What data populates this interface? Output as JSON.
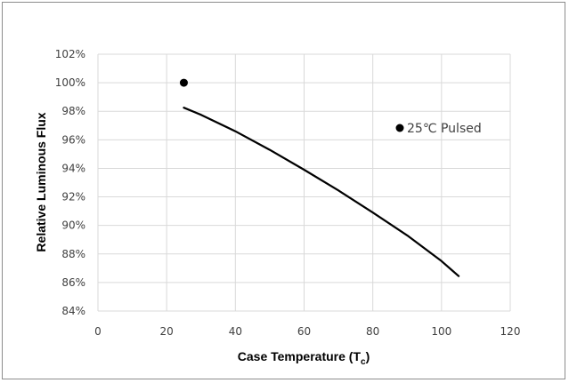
{
  "chart_data": {
    "type": "line",
    "title": "",
    "xlabel": "Case Temperature (T",
    "xlabel_subscript": "c",
    "xlabel_suffix": ")",
    "ylabel": "Relative Luminous Flux",
    "xlim": [
      0,
      120
    ],
    "ylim": [
      84,
      102
    ],
    "x_ticks": [
      0,
      20,
      40,
      60,
      80,
      100,
      120
    ],
    "x_tick_labels": [
      "0",
      "20",
      "40",
      "60",
      "80",
      "100",
      "120"
    ],
    "y_ticks": [
      84,
      86,
      88,
      90,
      92,
      94,
      96,
      98,
      100,
      102
    ],
    "y_tick_labels": [
      "84%",
      "86%",
      "88%",
      "90%",
      "92%",
      "94%",
      "96%",
      "98%",
      "100%",
      "102%"
    ],
    "grid": true,
    "legend_position": "right",
    "series": [
      {
        "type": "line",
        "x": [
          25,
          30,
          40,
          50,
          60,
          70,
          80,
          90,
          100,
          105
        ],
        "y": [
          98.25,
          97.75,
          96.6,
          95.3,
          93.9,
          92.45,
          90.9,
          89.3,
          87.5,
          86.45
        ],
        "color": "#000000"
      },
      {
        "name": "25℃ Pulsed",
        "type": "scatter",
        "x": [
          25
        ],
        "y": [
          100
        ],
        "color": "#000000"
      }
    ]
  }
}
